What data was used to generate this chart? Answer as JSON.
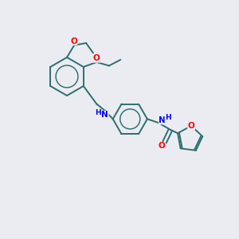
{
  "background_color": "#eaecf2",
  "bond_color": "#2d6e6e",
  "O_color": "#ff0000",
  "N_color": "#0000ff",
  "lw": 1.4,
  "fs": 7.5,
  "xlim": [
    0,
    10
  ],
  "ylim": [
    0,
    10
  ]
}
